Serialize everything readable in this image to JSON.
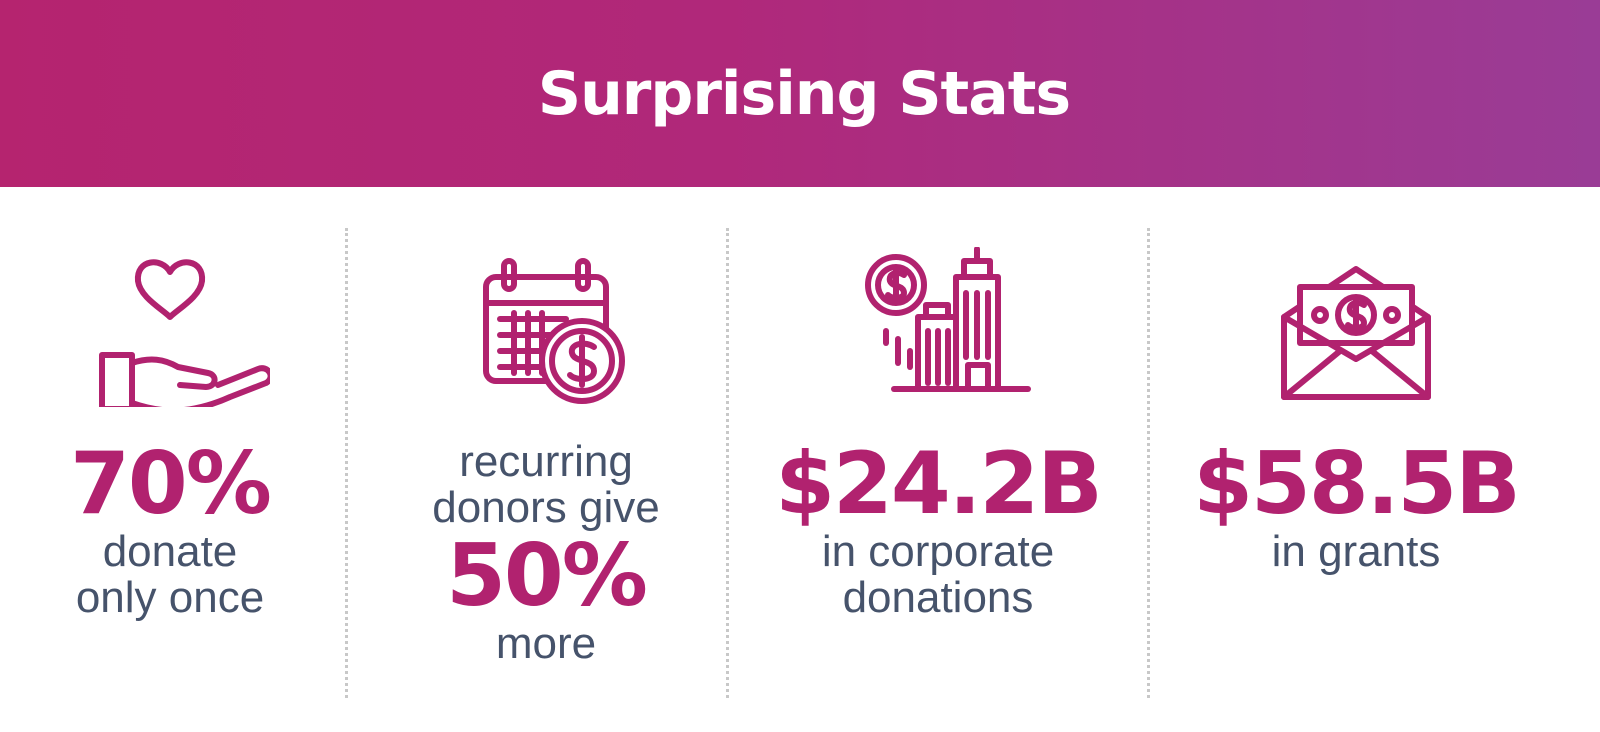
{
  "header": {
    "title": "Surprising Stats"
  },
  "colors": {
    "accent": "#b1226f",
    "header_start": "#b5246f",
    "header_end": "#9a3c96",
    "body_text": "#46536b"
  },
  "stats": [
    {
      "icon": "hand-heart-icon",
      "value": "70%",
      "line1": "donate",
      "line2": "only once"
    },
    {
      "icon": "calendar-dollar-icon",
      "pre1": "recurring",
      "pre2": "donors give",
      "value": "50%",
      "post": "more"
    },
    {
      "icon": "corporate-building-dollar-icon",
      "value": "$24.2B",
      "line1": "in corporate",
      "line2": "donations"
    },
    {
      "icon": "envelope-money-icon",
      "value": "$58.5B",
      "line1": "in grants"
    }
  ]
}
